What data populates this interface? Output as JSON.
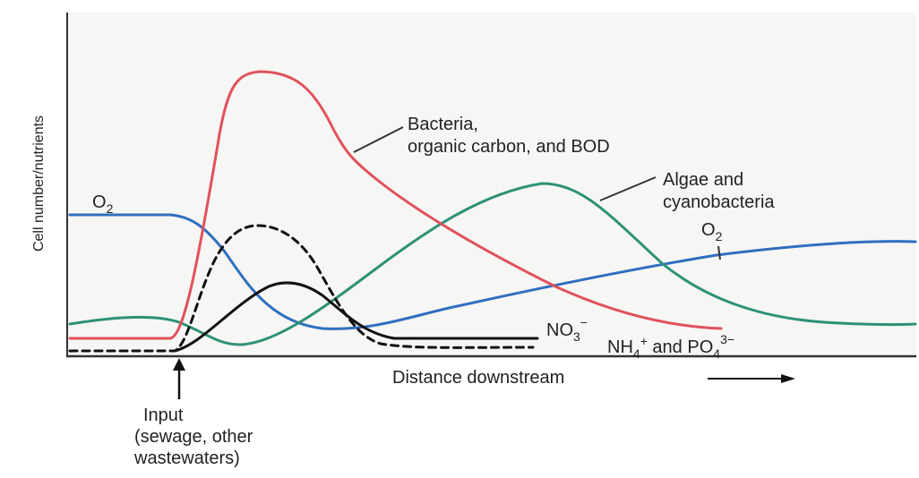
{
  "axis": {
    "y_label": "Cell number/nutrients",
    "x_label": "Distance downstream"
  },
  "labels": {
    "o2_left": [
      "O",
      "2"
    ],
    "bacteria": [
      "Bacteria,",
      "organic carbon, and BOD"
    ],
    "algae": [
      "Algae and",
      "cyanobacteria"
    ],
    "o2_right": [
      "O",
      "2"
    ],
    "nitrate": [
      "NO",
      "3",
      "−"
    ],
    "ammonium_phosphate": [
      "NH",
      "4",
      "+",
      " and PO",
      "4",
      "3−"
    ],
    "input": [
      "Input",
      "(sewage, other",
      "wastewaters)"
    ]
  }
}
